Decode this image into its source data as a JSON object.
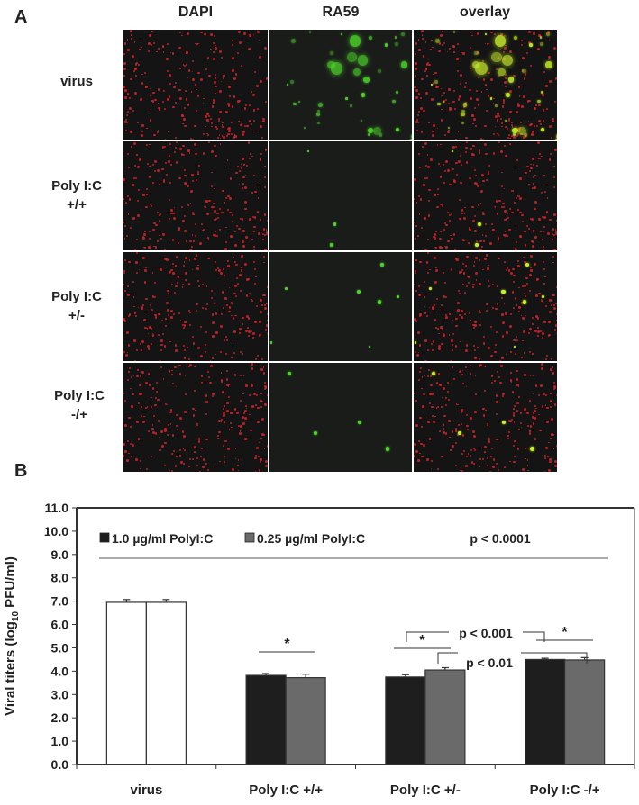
{
  "panel_a": {
    "letter": "A",
    "columns": [
      "DAPI",
      "RA59",
      "overlay"
    ],
    "rows": [
      {
        "label_line1": "virus",
        "label_line2": ""
      },
      {
        "label_line1": "Poly I:C",
        "label_line2": "+/+"
      },
      {
        "label_line1": "Poly I:C",
        "label_line2": "+/-"
      },
      {
        "label_line1": "Poly I:C",
        "label_line2": "-/+"
      }
    ],
    "green_counts": [
      40,
      3,
      7,
      4
    ],
    "colors": {
      "tile_bg": "#141414",
      "dapi": "#d8232a",
      "ra59": "#4ed62b",
      "overlay_merge": "#c8f02a"
    }
  },
  "panel_b": {
    "letter": "B"
  },
  "chart_data": {
    "type": "bar",
    "title": "",
    "xlabel": "",
    "ylabel": "Viral titers (log10 PFU/ml)",
    "ylabel_parts": {
      "pre": "Viral titers (log",
      "sub": "10",
      "post": " PFU/ml)"
    },
    "ylim": [
      0,
      11
    ],
    "yticks": [
      "0.0",
      "1.0",
      "2.0",
      "3.0",
      "4.0",
      "5.0",
      "6.0",
      "7.0",
      "8.0",
      "9.0",
      "10.0",
      "11.0"
    ],
    "categories": [
      "virus",
      "Poly I:C +/+",
      "Poly I:C +/-",
      "Poly I:C -/+"
    ],
    "series": [
      {
        "name": "1.0 µg/ml PolyI:C",
        "color": "#1e1e1e",
        "values": [
          6.95,
          3.82,
          3.75,
          4.5
        ],
        "errors": [
          0.12,
          0.08,
          0.1,
          0.05
        ]
      },
      {
        "name": "0.25 µg/ml PolyI:C",
        "color": "#6a6a6a",
        "values": [
          6.95,
          3.72,
          4.05,
          4.48
        ],
        "errors": [
          0.12,
          0.15,
          0.1,
          0.1
        ]
      }
    ],
    "virus_bar_color": "#ffffff",
    "legend": {
      "position": "top-left inside",
      "items": [
        "1.0 µg/ml PolyI:C",
        "0.25 µg/ml PolyI:C"
      ]
    },
    "annotations": {
      "overall": "p < 0.0001",
      "bracket_1": "p < 0.001",
      "bracket_2": "p < 0.01",
      "star": "*"
    },
    "grid": false
  }
}
